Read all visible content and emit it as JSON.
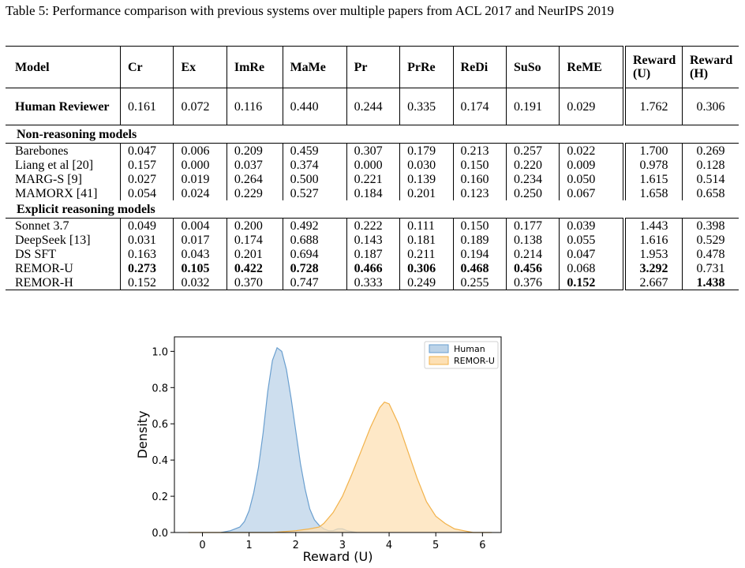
{
  "caption": "Table 5: Performance comparison with previous systems over multiple papers from ACL 2017 and NeurIPS 2019",
  "table": {
    "columns": [
      "Model",
      "Cr",
      "Ex",
      "ImRe",
      "MaMe",
      "Pr",
      "PrRe",
      "ReDi",
      "SuSo",
      "ReME",
      "Reward (U)",
      "Reward (H)"
    ],
    "human_row": {
      "model": "Human Reviewer",
      "values": [
        "0.161",
        "0.072",
        "0.116",
        "0.440",
        "0.244",
        "0.335",
        "0.174",
        "0.191",
        "0.029",
        "1.762",
        "0.306"
      ]
    },
    "sections": [
      {
        "title": "Non-reasoning models",
        "rows": [
          {
            "model": "Barebones",
            "values": [
              "0.047",
              "0.006",
              "0.209",
              "0.459",
              "0.307",
              "0.179",
              "0.213",
              "0.257",
              "0.022",
              "1.700",
              "0.269"
            ]
          },
          {
            "model": "Liang et al [20]",
            "values": [
              "0.157",
              "0.000",
              "0.037",
              "0.374",
              "0.000",
              "0.030",
              "0.150",
              "0.220",
              "0.009",
              "0.978",
              "0.128"
            ]
          },
          {
            "model": "MARG-S [9]",
            "values": [
              "0.027",
              "0.019",
              "0.264",
              "0.500",
              "0.221",
              "0.139",
              "0.160",
              "0.234",
              "0.050",
              "1.615",
              "0.514"
            ]
          },
          {
            "model": "MAMORX [41]",
            "values": [
              "0.054",
              "0.024",
              "0.229",
              "0.527",
              "0.184",
              "0.201",
              "0.123",
              "0.250",
              "0.067",
              "1.658",
              "0.658"
            ]
          }
        ]
      },
      {
        "title": "Explicit reasoning models",
        "rows": [
          {
            "model": "Sonnet 3.7",
            "values": [
              "0.049",
              "0.004",
              "0.200",
              "0.492",
              "0.222",
              "0.111",
              "0.150",
              "0.177",
              "0.039",
              "1.443",
              "0.398"
            ]
          },
          {
            "model": "DeepSeek [13]",
            "values": [
              "0.031",
              "0.017",
              "0.174",
              "0.688",
              "0.143",
              "0.181",
              "0.189",
              "0.138",
              "0.055",
              "1.616",
              "0.529"
            ]
          },
          {
            "model": "DS SFT",
            "values": [
              "0.163",
              "0.043",
              "0.201",
              "0.694",
              "0.187",
              "0.211",
              "0.194",
              "0.214",
              "0.047",
              "1.953",
              "0.478"
            ]
          },
          {
            "model": "REMOR-U",
            "values": [
              "0.273",
              "0.105",
              "0.422",
              "0.728",
              "0.466",
              "0.306",
              "0.468",
              "0.456",
              "0.068",
              "3.292",
              "0.731"
            ],
            "bold": [
              true,
              true,
              true,
              true,
              true,
              true,
              true,
              true,
              false,
              true,
              false
            ]
          },
          {
            "model": "REMOR-H",
            "values": [
              "0.152",
              "0.032",
              "0.370",
              "0.747",
              "0.333",
              "0.249",
              "0.255",
              "0.376",
              "0.152",
              "2.667",
              "1.438"
            ],
            "bold": [
              false,
              false,
              false,
              false,
              false,
              false,
              false,
              false,
              true,
              false,
              true
            ]
          }
        ]
      }
    ]
  },
  "chart_data": {
    "type": "area",
    "xlabel": "Reward (U)",
    "ylabel": "Density",
    "xlim": [
      -0.6,
      6.4
    ],
    "ylim": [
      0,
      1.08
    ],
    "xticks": [
      "0",
      "1",
      "2",
      "3",
      "4",
      "5",
      "6"
    ],
    "yticks": [
      "0.0",
      "0.2",
      "0.4",
      "0.6",
      "0.8",
      "1.0"
    ],
    "legend_position": "top-right",
    "series": [
      {
        "name": "Human",
        "color": "#6a9fcf",
        "fill": "#bcd3e8",
        "points": [
          [
            0.4,
            0.0
          ],
          [
            0.6,
            0.01
          ],
          [
            0.8,
            0.03
          ],
          [
            0.9,
            0.06
          ],
          [
            1.0,
            0.12
          ],
          [
            1.1,
            0.22
          ],
          [
            1.2,
            0.36
          ],
          [
            1.3,
            0.55
          ],
          [
            1.4,
            0.78
          ],
          [
            1.5,
            0.95
          ],
          [
            1.6,
            1.02
          ],
          [
            1.7,
            1.0
          ],
          [
            1.8,
            0.9
          ],
          [
            1.9,
            0.74
          ],
          [
            2.0,
            0.56
          ],
          [
            2.1,
            0.38
          ],
          [
            2.2,
            0.24
          ],
          [
            2.3,
            0.13
          ],
          [
            2.4,
            0.07
          ],
          [
            2.5,
            0.04
          ],
          [
            2.6,
            0.02
          ],
          [
            2.7,
            0.01
          ],
          [
            2.8,
            0.01
          ],
          [
            2.9,
            0.02
          ],
          [
            3.0,
            0.02
          ],
          [
            3.1,
            0.01
          ],
          [
            3.3,
            0.0
          ]
        ]
      },
      {
        "name": "REMOR-U",
        "color": "#f2b24a",
        "fill": "#fde0b4",
        "points": [
          [
            -0.3,
            0.0
          ],
          [
            0.5,
            0.0
          ],
          [
            1.5,
            0.0
          ],
          [
            2.0,
            0.01
          ],
          [
            2.3,
            0.02
          ],
          [
            2.5,
            0.03
          ],
          [
            2.6,
            0.05
          ],
          [
            2.7,
            0.08
          ],
          [
            2.8,
            0.11
          ],
          [
            3.0,
            0.2
          ],
          [
            3.2,
            0.32
          ],
          [
            3.4,
            0.45
          ],
          [
            3.6,
            0.58
          ],
          [
            3.8,
            0.69
          ],
          [
            3.9,
            0.72
          ],
          [
            4.0,
            0.71
          ],
          [
            4.2,
            0.6
          ],
          [
            4.4,
            0.45
          ],
          [
            4.6,
            0.3
          ],
          [
            4.8,
            0.17
          ],
          [
            5.0,
            0.09
          ],
          [
            5.2,
            0.05
          ],
          [
            5.4,
            0.02
          ],
          [
            5.6,
            0.01
          ],
          [
            5.8,
            0.0
          ],
          [
            6.2,
            0.0
          ]
        ]
      }
    ]
  }
}
